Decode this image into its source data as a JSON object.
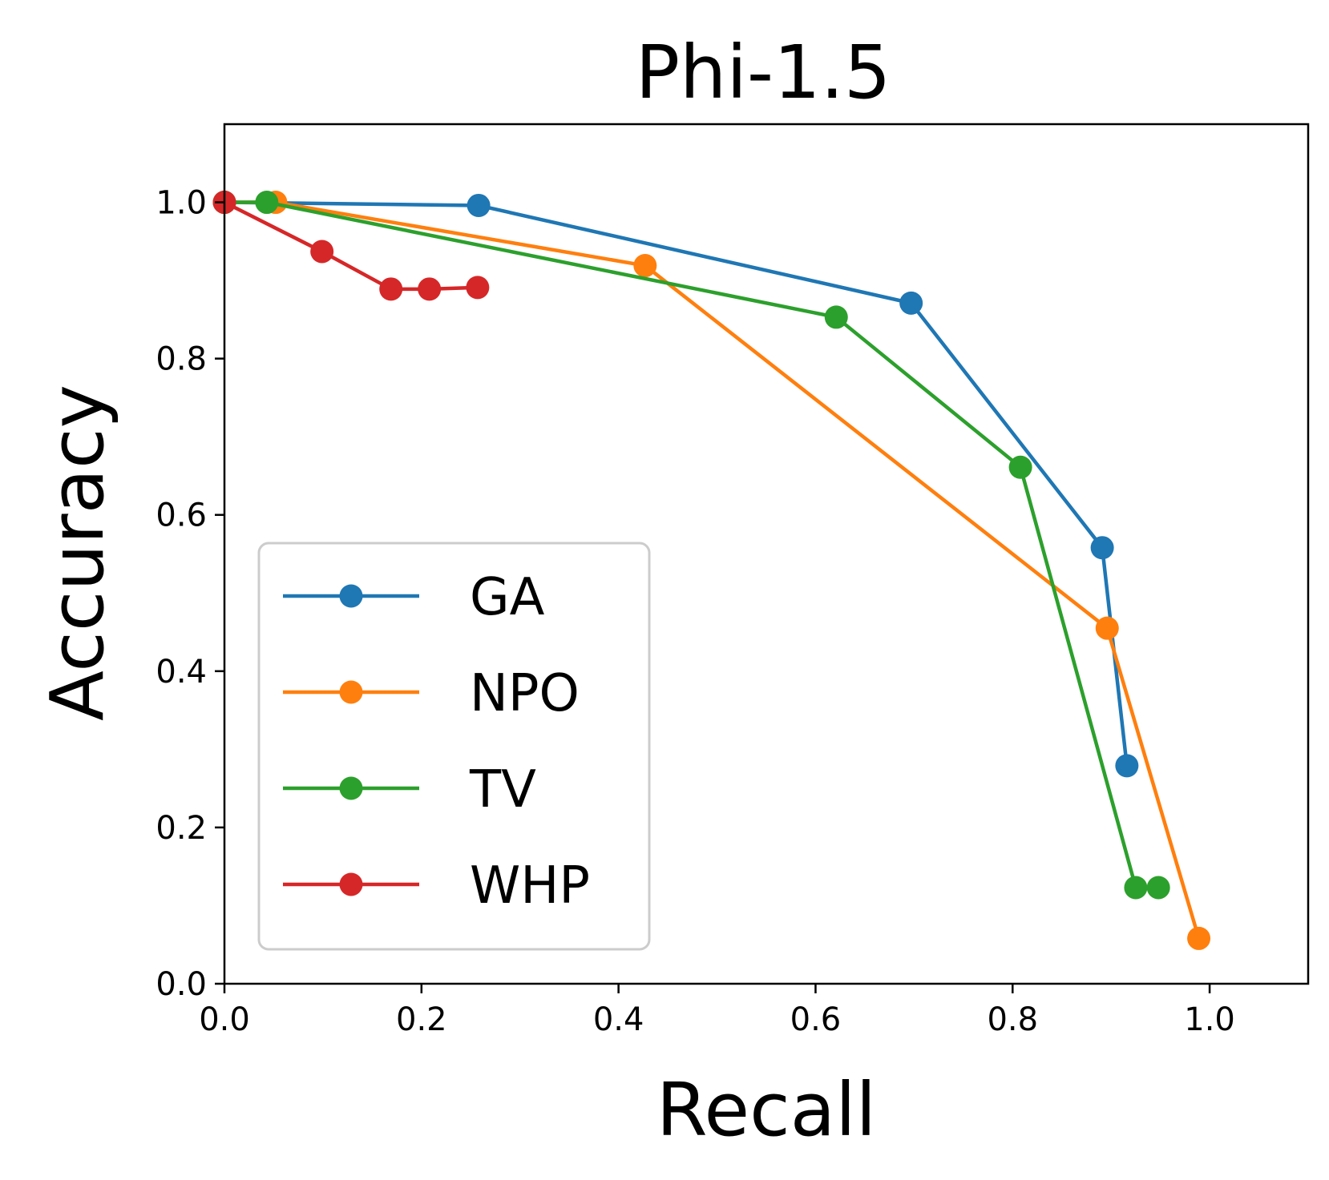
{
  "chart_data": {
    "type": "line",
    "title": "Phi-1.5",
    "xlabel": "Recall",
    "ylabel": "Accuracy",
    "xlim": [
      0.0,
      1.1
    ],
    "ylim": [
      0.0,
      1.1
    ],
    "xticks": [
      0.0,
      0.2,
      0.4,
      0.6,
      0.8,
      1.0
    ],
    "yticks": [
      0.0,
      0.2,
      0.4,
      0.6,
      0.8,
      1.0
    ],
    "xtick_labels": [
      "0.0",
      "0.2",
      "0.4",
      "0.6",
      "0.8",
      "1.0"
    ],
    "ytick_labels": [
      "0.0",
      "0.2",
      "0.4",
      "0.6",
      "0.8",
      "1.0"
    ],
    "grid": false,
    "legend_position": "lower-left",
    "series": [
      {
        "name": "GA",
        "color": "#1f77b4",
        "x": [
          0.0,
          0.258,
          0.697,
          0.891,
          0.916
        ],
        "y": [
          1.0,
          0.996,
          0.871,
          0.558,
          0.279
        ]
      },
      {
        "name": "NPO",
        "color": "#ff7f0e",
        "x": [
          0.0,
          0.052,
          0.427,
          0.896,
          0.989
        ],
        "y": [
          1.0,
          1.0,
          0.919,
          0.455,
          0.058
        ]
      },
      {
        "name": "TV",
        "color": "#2ca02c",
        "x": [
          0.0,
          0.043,
          0.621,
          0.808,
          0.925,
          0.948
        ],
        "y": [
          1.0,
          1.0,
          0.853,
          0.661,
          0.123,
          0.123
        ]
      },
      {
        "name": "WHP",
        "color": "#d62728",
        "x": [
          0.0,
          0.099,
          0.169,
          0.208,
          0.257
        ],
        "y": [
          1.0,
          0.937,
          0.889,
          0.889,
          0.891
        ]
      }
    ]
  }
}
